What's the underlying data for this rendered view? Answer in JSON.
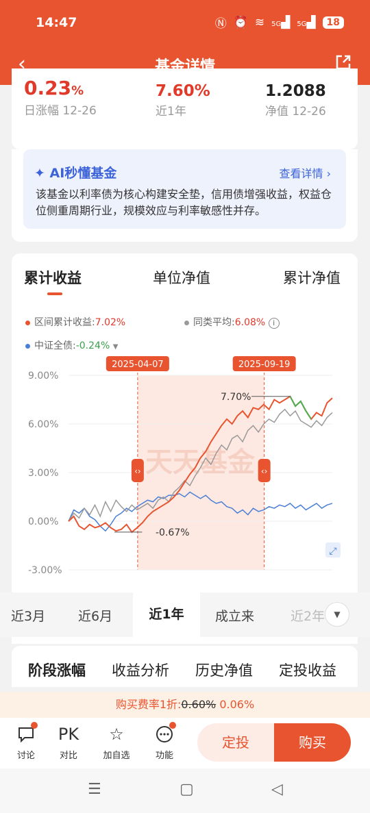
{
  "status_bar": {
    "time": "14:47",
    "signal1": "5G",
    "signal2": "5G",
    "battery": "18"
  },
  "nav": {
    "title": "基金详情"
  },
  "summary": {
    "daily_change": "0.23",
    "daily_change_unit": "%",
    "daily_change_label": "日涨幅 12-26",
    "year_return": "7.60%",
    "year_return_label": "近1年",
    "nav_value": "1.2088",
    "nav_label": "净值 12-26"
  },
  "ai": {
    "title": "AI秒懂基金",
    "link": "查看详情 ›",
    "text": "该基金以利率债为核心构建安全垫，信用债增强收益，权益仓位侧重周期行业，规模效应与利率敏感性并存。"
  },
  "chart_tabs": [
    "累计收益",
    "单位净值",
    "累计净值"
  ],
  "legend": {
    "fund_label": "区间累计收益:",
    "fund_value": "7.02%",
    "peer_label": "同类平均:",
    "peer_value": "6.08%",
    "index_label": "中证全债:",
    "index_value": "-0.24%"
  },
  "chart_data": {
    "type": "line",
    "x_start": "2024-12-26",
    "x_end": "2025-12-26",
    "ylim": [
      -3,
      9
    ],
    "yticks": [
      "9.00%",
      "6.00%",
      "3.00%",
      "0.00%",
      "-3.00%"
    ],
    "ytick_values": [
      9,
      6,
      3,
      0,
      -3
    ],
    "range_start": "2025-04-07",
    "range_end": "2025-09-19",
    "annotation_high": "7.70%",
    "annotation_low": "-0.67%",
    "watermark": "天天基金",
    "colors": {
      "fund": "#e8542f",
      "peer": "#9a9a9a",
      "index": "#4a7fd6",
      "fund_up": "#4caf50"
    },
    "series": [
      {
        "name": "区间累计收益",
        "x": [
          0,
          0.02,
          0.04,
          0.06,
          0.08,
          0.1,
          0.12,
          0.14,
          0.16,
          0.18,
          0.2,
          0.22,
          0.24,
          0.26,
          0.28,
          0.3,
          0.32,
          0.34,
          0.36,
          0.38,
          0.4,
          0.42,
          0.44,
          0.46,
          0.48,
          0.5,
          0.52,
          0.54,
          0.56,
          0.58,
          0.6,
          0.62,
          0.64,
          0.66,
          0.68,
          0.7,
          0.72,
          0.74,
          0.76,
          0.78,
          0.8,
          0.82,
          0.84,
          0.86,
          0.88,
          0.9,
          0.92,
          0.94,
          0.96,
          0.98,
          1.0
        ],
        "values": [
          0.0,
          0.3,
          -0.3,
          -0.5,
          -0.2,
          -0.4,
          -0.3,
          -0.1,
          -0.4,
          -0.6,
          -0.5,
          -0.2,
          -0.67,
          -0.4,
          -0.1,
          0.3,
          0.6,
          0.8,
          1.0,
          1.2,
          1.5,
          1.9,
          2.4,
          2.9,
          3.3,
          3.9,
          4.3,
          4.9,
          5.4,
          5.9,
          6.3,
          6.0,
          6.5,
          6.8,
          6.4,
          7.0,
          6.9,
          7.2,
          6.9,
          7.5,
          7.3,
          7.5,
          7.7,
          7.1,
          7.4,
          6.8,
          6.3,
          6.7,
          6.5,
          7.3,
          7.6
        ]
      },
      {
        "name": "同类平均",
        "x": [
          0,
          0.02,
          0.04,
          0.06,
          0.08,
          0.1,
          0.12,
          0.14,
          0.16,
          0.18,
          0.2,
          0.22,
          0.24,
          0.26,
          0.28,
          0.3,
          0.32,
          0.34,
          0.36,
          0.38,
          0.4,
          0.42,
          0.44,
          0.46,
          0.48,
          0.5,
          0.52,
          0.54,
          0.56,
          0.58,
          0.6,
          0.62,
          0.64,
          0.66,
          0.68,
          0.7,
          0.72,
          0.74,
          0.76,
          0.78,
          0.8,
          0.82,
          0.84,
          0.86,
          0.88,
          0.9,
          0.92,
          0.94,
          0.96,
          0.98,
          1.0
        ],
        "values": [
          0.0,
          0.5,
          0.2,
          0.8,
          0.4,
          1.0,
          0.3,
          1.2,
          0.6,
          1.3,
          0.9,
          0.6,
          1.0,
          0.7,
          0.9,
          1.1,
          0.8,
          1.3,
          1.5,
          1.2,
          1.8,
          2.1,
          2.5,
          2.2,
          2.8,
          3.3,
          3.9,
          3.5,
          4.2,
          4.7,
          4.4,
          5.1,
          5.3,
          4.9,
          5.6,
          5.9,
          5.5,
          6.0,
          6.3,
          6.1,
          6.6,
          6.9,
          6.5,
          6.8,
          6.2,
          6.0,
          5.8,
          6.2,
          5.9,
          6.4,
          6.7
        ]
      },
      {
        "name": "中证全债",
        "x": [
          0,
          0.02,
          0.04,
          0.06,
          0.08,
          0.1,
          0.12,
          0.14,
          0.16,
          0.18,
          0.2,
          0.22,
          0.24,
          0.26,
          0.28,
          0.3,
          0.32,
          0.34,
          0.36,
          0.38,
          0.4,
          0.42,
          0.44,
          0.46,
          0.48,
          0.5,
          0.52,
          0.54,
          0.56,
          0.58,
          0.6,
          0.62,
          0.64,
          0.66,
          0.68,
          0.7,
          0.72,
          0.74,
          0.76,
          0.78,
          0.8,
          0.82,
          0.84,
          0.86,
          0.88,
          0.9,
          0.92,
          0.94,
          0.96,
          0.98,
          1.0
        ],
        "values": [
          0.0,
          0.7,
          0.5,
          0.8,
          0.3,
          0.1,
          -0.3,
          -0.6,
          -0.2,
          0.3,
          0.5,
          0.8,
          0.6,
          0.9,
          1.1,
          1.3,
          1.2,
          1.5,
          1.4,
          1.6,
          1.6,
          1.7,
          1.5,
          1.8,
          1.6,
          1.4,
          1.6,
          1.3,
          1.1,
          1.2,
          0.9,
          0.8,
          0.5,
          0.7,
          0.4,
          0.8,
          0.6,
          0.7,
          0.9,
          0.8,
          1.0,
          0.9,
          1.1,
          0.8,
          1.0,
          0.7,
          0.9,
          1.1,
          0.8,
          1.0,
          1.1
        ]
      }
    ]
  },
  "periods": [
    "近3月",
    "近6月",
    "近1年",
    "成立来",
    "近2年"
  ],
  "stage_tabs": [
    "阶段涨幅",
    "收益分析",
    "历史净值",
    "定投收益"
  ],
  "fee": {
    "prefix": "购买费率1折:",
    "old": "0.60%",
    "new": "0.06%"
  },
  "bottom": {
    "discuss": "讨论",
    "pk_icon": "PK",
    "compare": "对比",
    "add": "加自选",
    "func": "功能",
    "dingtou": "定投",
    "buy": "购买"
  }
}
